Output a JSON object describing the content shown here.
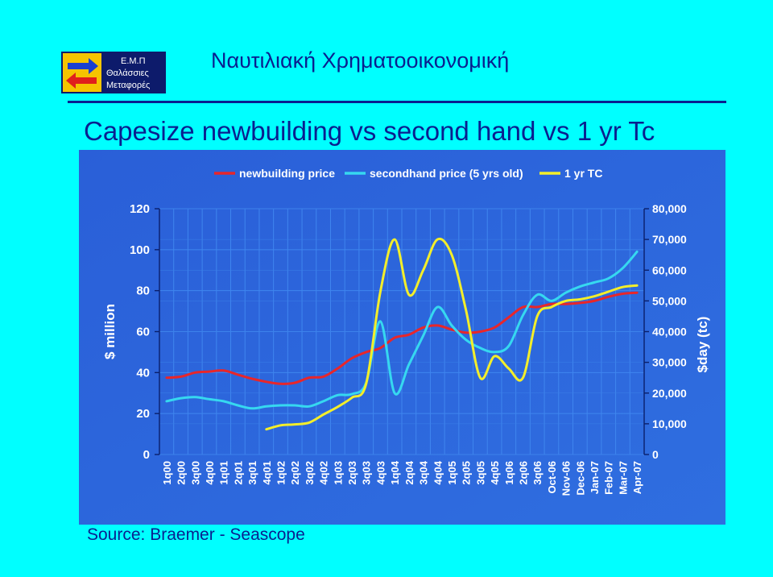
{
  "header": {
    "logo_text": [
      "Ε.Μ.Π",
      "Θαλάσσιες",
      "Μεταφορές"
    ],
    "title": "Ναυτιλιακή Χρηματοοικονομική",
    "rule_color": "#0a1f8f"
  },
  "slide_title": "Capesize newbuilding vs second hand vs 1 yr Tc",
  "source": "Source: Braemer - Seascope",
  "colors": {
    "background": "#00ffff",
    "panel": "#2a63d6",
    "newbuilding": "#e8262a",
    "secondhand": "#36d8f0",
    "tc": "#f3ee2a",
    "text_dark": "#0a1f8f"
  },
  "chart_data": {
    "type": "line",
    "categories": [
      "1q00",
      "2q00",
      "3q00",
      "4q00",
      "1q01",
      "2q01",
      "3q01",
      "4q01",
      "1q02",
      "2q02",
      "3q02",
      "4q02",
      "1q03",
      "2q03",
      "3q03",
      "4q03",
      "1q04",
      "2q04",
      "3q04",
      "4q04",
      "1q05",
      "2q05",
      "3q05",
      "4q05",
      "1q06",
      "2q06",
      "3q06",
      "Oct-06",
      "Nov-06",
      "Dec-06",
      "Jan-07",
      "Feb-07",
      "Mar-07",
      "Apr-07"
    ],
    "ylabel": "$ million",
    "ylabel_right": "$day (tc)",
    "ylim": [
      0,
      120
    ],
    "yticks": [
      0,
      20,
      40,
      60,
      80,
      100,
      120
    ],
    "ylim_right": [
      0,
      80000
    ],
    "yticks_right": [
      "0",
      "10,000",
      "20,000",
      "30,000",
      "40,000",
      "50,000",
      "60,000",
      "70,000",
      "80,000"
    ],
    "legend_position": "top",
    "grid": true,
    "series": [
      {
        "name": "newbuilding price",
        "axis": "left",
        "values": [
          37.5,
          38,
          40,
          40.5,
          41,
          39,
          37,
          35.5,
          34.5,
          35,
          37.5,
          38,
          42,
          47,
          50,
          52,
          57,
          58.5,
          62,
          63,
          61,
          59.5,
          60,
          62,
          67,
          72,
          72,
          73.5,
          73.5,
          74,
          75,
          77,
          78.5,
          79
        ]
      },
      {
        "name": "secondhand price (5 yrs old)",
        "axis": "left",
        "values": [
          26,
          27.5,
          28,
          27,
          26,
          24,
          22.5,
          23.5,
          24,
          24,
          23.5,
          26,
          29,
          29.5,
          35,
          65,
          30,
          44,
          58,
          72,
          63,
          56,
          52,
          50,
          53,
          68,
          78,
          75,
          79,
          82,
          84,
          86,
          91,
          99
        ]
      },
      {
        "name": "1 yr TC",
        "axis": "right",
        "values": [
          null,
          null,
          null,
          null,
          null,
          null,
          null,
          8200,
          9500,
          9800,
          10400,
          13000,
          15500,
          18500,
          23000,
          53000,
          70000,
          52000,
          60000,
          70000,
          65000,
          47000,
          25000,
          32000,
          28000,
          25000,
          45000,
          48000,
          50000,
          50500,
          51500,
          53000,
          54500,
          55000
        ]
      }
    ]
  }
}
